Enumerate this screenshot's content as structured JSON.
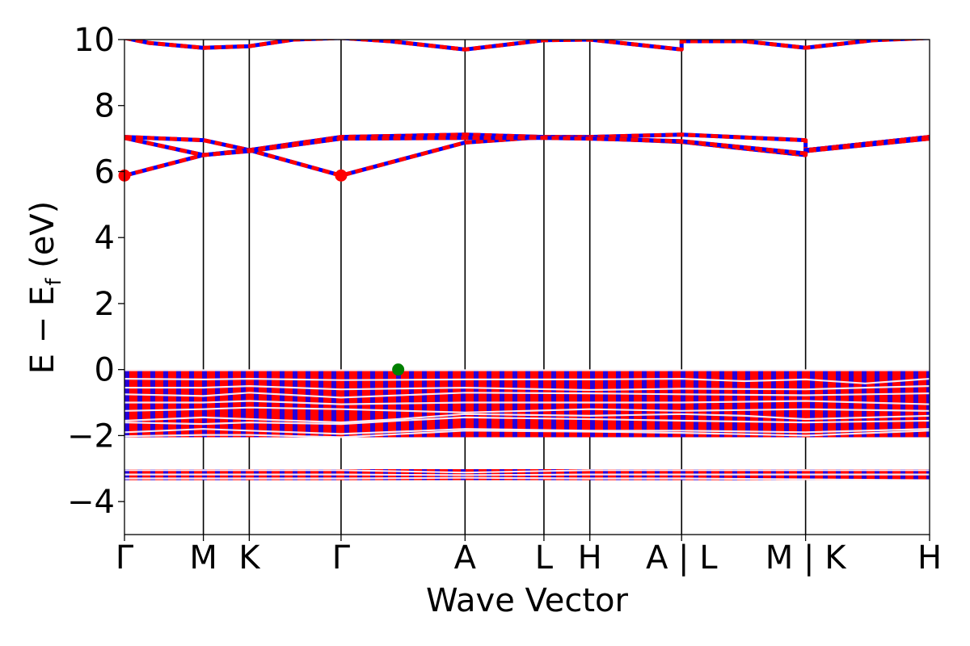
{
  "chart_data": {
    "type": "line",
    "title": "",
    "xlabel": "Wave Vector",
    "ylabel_parts": [
      "E − E",
      "f",
      " (eV)"
    ],
    "ylim": [
      -5,
      10
    ],
    "yticks": [
      -4,
      -2,
      0,
      2,
      4,
      6,
      8,
      10
    ],
    "ytick_labels": [
      "−4",
      "−2",
      "0",
      "2",
      "4",
      "6",
      "8",
      "10"
    ],
    "xticks": [
      {
        "x": 0.0,
        "label": "Γ"
      },
      {
        "x": 0.098,
        "label": "M"
      },
      {
        "x": 0.155,
        "label": "K"
      },
      {
        "x": 0.269,
        "label": "Γ"
      },
      {
        "x": 0.423,
        "label": "A"
      },
      {
        "x": 0.521,
        "label": "L"
      },
      {
        "x": 0.578,
        "label": "H"
      },
      {
        "x": 0.692,
        "label": "A | L"
      },
      {
        "x": 0.846,
        "label": "M | K"
      },
      {
        "x": 1.0,
        "label": "H"
      }
    ],
    "grid": false,
    "legend": "none",
    "colors": {
      "band_primary": "#ff0000",
      "band_secondary": "#0000ff",
      "vbm": "#008000",
      "cbm": "#ff0000",
      "divider": "#000000"
    },
    "markers": [
      {
        "name": "CBM",
        "color": "#ff0000",
        "points": [
          [
            0.0,
            5.88
          ],
          [
            0.269,
            5.88
          ]
        ]
      },
      {
        "name": "VBM",
        "color": "#008000",
        "points": [
          [
            0.34,
            0.0
          ]
        ]
      }
    ],
    "bands": [
      {
        "group": "conduction",
        "points": [
          [
            0,
            7.05
          ],
          [
            0.098,
            6.95
          ],
          [
            0.155,
            6.65
          ],
          [
            0.269,
            7.05
          ],
          [
            0.423,
            7.12
          ],
          [
            0.521,
            7.05
          ],
          [
            0.578,
            7.05
          ],
          [
            0.692,
            7.12
          ],
          [
            0.846,
            6.95
          ],
          [
            0.846,
            6.65
          ],
          [
            1.0,
            7.05
          ]
        ]
      },
      {
        "group": "conduction",
        "points": [
          [
            0,
            5.88
          ],
          [
            0.098,
            6.5
          ],
          [
            0.155,
            6.65
          ],
          [
            0.269,
            5.88
          ],
          [
            0.423,
            6.88
          ],
          [
            0.521,
            7.05
          ],
          [
            0.578,
            7.02
          ],
          [
            0.692,
            6.9
          ],
          [
            0.846,
            6.5
          ],
          [
            0.846,
            6.65
          ],
          [
            1.0,
            7.05
          ]
        ]
      },
      {
        "group": "conduction",
        "points": [
          [
            0,
            7.02
          ],
          [
            0.098,
            6.5
          ],
          [
            0.155,
            6.62
          ],
          [
            0.269,
            7.0
          ],
          [
            0.423,
            7.02
          ],
          [
            0.521,
            7.02
          ],
          [
            0.578,
            7.0
          ],
          [
            0.692,
            6.92
          ],
          [
            0.846,
            6.55
          ],
          [
            0.846,
            6.62
          ],
          [
            1.0,
            7.0
          ]
        ]
      },
      {
        "group": "conduction",
        "points": [
          [
            0,
            10.05
          ],
          [
            0.03,
            9.9
          ],
          [
            0.098,
            9.75
          ],
          [
            0.155,
            9.8
          ],
          [
            0.21,
            10.0
          ],
          [
            0.269,
            10.05
          ],
          [
            0.33,
            9.95
          ],
          [
            0.423,
            9.7
          ],
          [
            0.521,
            9.98
          ],
          [
            0.578,
            10.0
          ],
          [
            0.692,
            9.7
          ],
          [
            0.692,
            9.95
          ],
          [
            0.77,
            9.95
          ],
          [
            0.846,
            9.75
          ],
          [
            0.93,
            9.98
          ],
          [
            1.0,
            10.05
          ]
        ]
      },
      {
        "group": "valence",
        "points": [
          [
            0,
            -0.02
          ],
          [
            0.269,
            -0.02
          ],
          [
            0.423,
            -0.02
          ],
          [
            0.578,
            -0.02
          ],
          [
            0.692,
            -0.02
          ],
          [
            1.0,
            -0.02
          ]
        ]
      },
      {
        "group": "valence",
        "points": [
          [
            0,
            -0.28
          ],
          [
            0.098,
            -0.3
          ],
          [
            0.155,
            -0.28
          ],
          [
            0.269,
            -0.32
          ],
          [
            0.423,
            -0.3
          ],
          [
            0.578,
            -0.3
          ],
          [
            0.692,
            -0.28
          ],
          [
            0.77,
            -0.35
          ],
          [
            0.846,
            -0.3
          ],
          [
            0.92,
            -0.42
          ],
          [
            1.0,
            -0.28
          ]
        ]
      },
      {
        "group": "valence",
        "points": [
          [
            0,
            -0.55
          ],
          [
            0.098,
            -0.55
          ],
          [
            0.155,
            -0.5
          ],
          [
            0.269,
            -0.6
          ],
          [
            0.423,
            -0.55
          ],
          [
            0.578,
            -0.62
          ],
          [
            0.692,
            -0.58
          ],
          [
            0.846,
            -0.6
          ],
          [
            0.92,
            -0.55
          ],
          [
            1.0,
            -0.5
          ]
        ]
      },
      {
        "group": "valence",
        "points": [
          [
            0,
            -0.75
          ],
          [
            0.098,
            -0.8
          ],
          [
            0.155,
            -0.7
          ],
          [
            0.269,
            -0.85
          ],
          [
            0.423,
            -0.7
          ],
          [
            0.578,
            -0.72
          ],
          [
            0.692,
            -0.75
          ],
          [
            0.846,
            -0.78
          ],
          [
            1.0,
            -0.72
          ]
        ]
      },
      {
        "group": "valence",
        "points": [
          [
            0,
            -1.0
          ],
          [
            0.098,
            -1.0
          ],
          [
            0.155,
            -0.95
          ],
          [
            0.269,
            -1.05
          ],
          [
            0.423,
            -1.0
          ],
          [
            0.578,
            -1.0
          ],
          [
            0.692,
            -1.0
          ],
          [
            0.846,
            -0.95
          ],
          [
            0.92,
            -1.0
          ],
          [
            1.0,
            -1.05
          ]
        ]
      },
      {
        "group": "valence",
        "points": [
          [
            0,
            -1.25
          ],
          [
            0.098,
            -1.2
          ],
          [
            0.155,
            -1.15
          ],
          [
            0.269,
            -1.2
          ],
          [
            0.423,
            -1.3
          ],
          [
            0.578,
            -1.2
          ],
          [
            0.692,
            -1.25
          ],
          [
            0.846,
            -1.2
          ],
          [
            1.0,
            -1.25
          ]
        ]
      },
      {
        "group": "valence",
        "points": [
          [
            0,
            -1.55
          ],
          [
            0.098,
            -1.45
          ],
          [
            0.155,
            -1.5
          ],
          [
            0.269,
            -1.6
          ],
          [
            0.34,
            -1.5
          ],
          [
            0.423,
            -1.35
          ],
          [
            0.578,
            -1.4
          ],
          [
            0.692,
            -1.35
          ],
          [
            0.77,
            -1.4
          ],
          [
            0.846,
            -1.5
          ],
          [
            1.0,
            -1.4
          ]
        ]
      },
      {
        "group": "valence",
        "points": [
          [
            0,
            -1.6
          ],
          [
            0.098,
            -1.65
          ],
          [
            0.155,
            -1.6
          ],
          [
            0.269,
            -1.65
          ],
          [
            0.34,
            -1.55
          ],
          [
            0.423,
            -1.45
          ],
          [
            0.578,
            -1.5
          ],
          [
            0.692,
            -1.55
          ],
          [
            0.846,
            -1.6
          ],
          [
            1.0,
            -1.55
          ]
        ]
      },
      {
        "group": "valence",
        "points": [
          [
            0,
            -1.9
          ],
          [
            0.098,
            -1.8
          ],
          [
            0.155,
            -1.85
          ],
          [
            0.269,
            -1.95
          ],
          [
            0.423,
            -1.8
          ],
          [
            0.578,
            -1.85
          ],
          [
            0.692,
            -1.85
          ],
          [
            0.846,
            -1.9
          ],
          [
            1.0,
            -1.8
          ]
        ]
      },
      {
        "group": "valence",
        "points": [
          [
            0,
            -2.02
          ],
          [
            0.098,
            -1.98
          ],
          [
            0.155,
            -1.98
          ],
          [
            0.269,
            -2.05
          ],
          [
            0.423,
            -1.85
          ],
          [
            0.578,
            -1.88
          ],
          [
            0.692,
            -1.92
          ],
          [
            0.846,
            -2.0
          ],
          [
            1.0,
            -1.85
          ]
        ]
      },
      {
        "group": "semicore",
        "points": [
          [
            0,
            -3.05
          ],
          [
            0.269,
            -3.05
          ],
          [
            0.423,
            -3.12
          ],
          [
            0.578,
            -3.05
          ],
          [
            0.692,
            -3.05
          ],
          [
            1.0,
            -3.05
          ]
        ]
      },
      {
        "group": "semicore",
        "points": [
          [
            0,
            -3.18
          ],
          [
            0.269,
            -3.18
          ],
          [
            0.423,
            -3.2
          ],
          [
            0.578,
            -3.18
          ],
          [
            0.692,
            -3.18
          ],
          [
            1.0,
            -3.18
          ]
        ]
      },
      {
        "group": "semicore",
        "points": [
          [
            0,
            -3.3
          ],
          [
            0.269,
            -3.3
          ],
          [
            0.423,
            -3.28
          ],
          [
            0.578,
            -3.3
          ],
          [
            0.692,
            -3.3
          ],
          [
            1.0,
            -3.35
          ]
        ]
      }
    ]
  }
}
